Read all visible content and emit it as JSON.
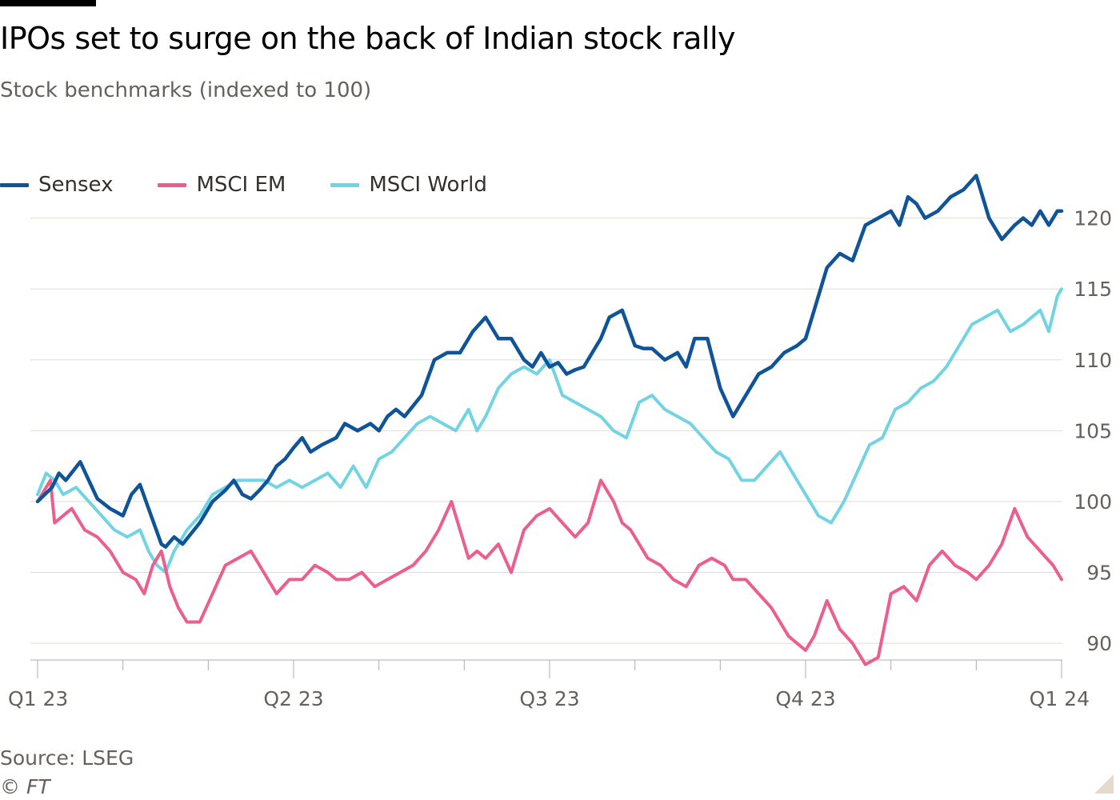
{
  "chart_data": {
    "type": "line",
    "title": "IPOs set to surge on the back of Indian stock rally",
    "subtitle": "Stock benchmarks (indexed to 100)",
    "source": "Source: LSEG",
    "credit": "© FT",
    "x_tick_labels": [
      "Q1 23",
      "Q2 23",
      "Q3 23",
      "Q4 23",
      "Q1 24"
    ],
    "x_range": [
      0,
      12
    ],
    "ylim": [
      88,
      123
    ],
    "y_ticks": [
      90,
      95,
      100,
      105,
      110,
      115,
      120
    ],
    "y_axis_side": "right",
    "grid": true,
    "legend_position": "top-left",
    "series": [
      {
        "name": "Sensex",
        "color": "#0f5499",
        "x": [
          0,
          0.17,
          0.25,
          0.33,
          0.5,
          0.6,
          0.7,
          0.85,
          1.0,
          1.1,
          1.2,
          1.33,
          1.45,
          1.5,
          1.6,
          1.7,
          1.9,
          2.05,
          2.2,
          2.3,
          2.4,
          2.5,
          2.6,
          2.7,
          2.8,
          2.9,
          3.0,
          3.1,
          3.2,
          3.33,
          3.5,
          3.6,
          3.75,
          3.9,
          4.0,
          4.1,
          4.2,
          4.3,
          4.5,
          4.65,
          4.8,
          4.95,
          5.1,
          5.25,
          5.4,
          5.55,
          5.7,
          5.8,
          5.9,
          6.0,
          6.1,
          6.2,
          6.3,
          6.4,
          6.5,
          6.6,
          6.7,
          6.85,
          7.0,
          7.1,
          7.2,
          7.35,
          7.5,
          7.6,
          7.7,
          7.85,
          8.0,
          8.15,
          8.3,
          8.45,
          8.6,
          8.75,
          8.9,
          9.0,
          9.1,
          9.25,
          9.4,
          9.55,
          9.7,
          9.85,
          10.0,
          10.1,
          10.2,
          10.3,
          10.4,
          10.55,
          10.7,
          10.85,
          11.0,
          11.15,
          11.3,
          11.45,
          11.55,
          11.65,
          11.75,
          11.85,
          11.95,
          12.0
        ],
        "values": [
          100.0,
          101.0,
          102.0,
          101.5,
          102.8,
          101.5,
          100.2,
          99.5,
          99.0,
          100.5,
          101.2,
          99.0,
          97.0,
          96.8,
          97.5,
          97.0,
          98.5,
          100.0,
          100.8,
          101.5,
          100.5,
          100.2,
          100.8,
          101.5,
          102.5,
          103.0,
          103.8,
          104.5,
          103.5,
          104.0,
          104.5,
          105.5,
          105.0,
          105.5,
          105.0,
          106.0,
          106.5,
          106.0,
          107.5,
          110.0,
          110.5,
          110.5,
          112.0,
          113.0,
          111.5,
          111.5,
          110.0,
          109.5,
          110.5,
          109.5,
          109.8,
          109.0,
          109.3,
          109.5,
          110.5,
          111.5,
          113.0,
          113.5,
          111.0,
          110.8,
          110.8,
          110.0,
          110.5,
          109.5,
          111.5,
          111.5,
          108.0,
          106.0,
          107.5,
          109.0,
          109.5,
          110.5,
          111.0,
          111.5,
          113.5,
          116.5,
          117.5,
          117.0,
          119.5,
          120.0,
          120.5,
          119.5,
          121.5,
          121.0,
          120.0,
          120.5,
          121.5,
          122.0,
          123.0,
          120.0,
          118.5,
          119.5,
          120.0,
          119.5,
          120.5,
          119.5,
          120.5,
          120.5
        ]
      },
      {
        "name": "MSCI EM",
        "color": "#eb5e8d",
        "x": [
          0,
          0.08,
          0.15,
          0.2,
          0.3,
          0.4,
          0.55,
          0.7,
          0.85,
          1.0,
          1.15,
          1.25,
          1.35,
          1.45,
          1.55,
          1.65,
          1.75,
          1.9,
          2.05,
          2.2,
          2.35,
          2.5,
          2.65,
          2.8,
          2.95,
          3.1,
          3.25,
          3.4,
          3.5,
          3.65,
          3.8,
          3.95,
          4.1,
          4.25,
          4.4,
          4.55,
          4.7,
          4.85,
          4.95,
          5.05,
          5.15,
          5.25,
          5.4,
          5.55,
          5.7,
          5.85,
          6.0,
          6.15,
          6.3,
          6.45,
          6.6,
          6.75,
          6.85,
          6.95,
          7.05,
          7.15,
          7.3,
          7.45,
          7.6,
          7.75,
          7.9,
          8.05,
          8.15,
          8.3,
          8.45,
          8.6,
          8.7,
          8.8,
          8.9,
          9.0,
          9.1,
          9.25,
          9.4,
          9.55,
          9.7,
          9.85,
          10.0,
          10.15,
          10.3,
          10.45,
          10.6,
          10.75,
          10.9,
          11.0,
          11.15,
          11.3,
          11.45,
          11.6,
          11.75,
          11.9,
          12.0
        ],
        "values": [
          100.0,
          100.8,
          101.5,
          98.5,
          99.0,
          99.5,
          98.0,
          97.5,
          96.5,
          95.0,
          94.5,
          93.5,
          95.5,
          96.5,
          94.0,
          92.5,
          91.5,
          91.5,
          93.5,
          95.5,
          96.0,
          96.5,
          95.0,
          93.5,
          94.5,
          94.5,
          95.5,
          95.0,
          94.5,
          94.5,
          95.0,
          94.0,
          94.5,
          95.0,
          95.5,
          96.5,
          98.0,
          100.0,
          98.0,
          96.0,
          96.5,
          96.0,
          97.0,
          95.0,
          98.0,
          99.0,
          99.5,
          98.5,
          97.5,
          98.5,
          101.5,
          100.0,
          98.5,
          98.0,
          97.0,
          96.0,
          95.5,
          94.5,
          94.0,
          95.5,
          96.0,
          95.5,
          94.5,
          94.5,
          93.5,
          92.5,
          91.5,
          90.5,
          90.0,
          89.5,
          90.5,
          93.0,
          91.0,
          90.0,
          88.5,
          89.0,
          93.5,
          94.0,
          93.0,
          95.5,
          96.5,
          95.5,
          95.0,
          94.5,
          95.5,
          97.0,
          99.5,
          97.5,
          96.5,
          95.5,
          94.5
        ]
      },
      {
        "name": "MSCI World",
        "color": "#72d4e3",
        "x": [
          0,
          0.1,
          0.2,
          0.3,
          0.45,
          0.6,
          0.75,
          0.9,
          1.05,
          1.2,
          1.3,
          1.4,
          1.5,
          1.6,
          1.75,
          1.9,
          2.05,
          2.2,
          2.35,
          2.5,
          2.65,
          2.8,
          2.95,
          3.1,
          3.25,
          3.4,
          3.55,
          3.7,
          3.85,
          4.0,
          4.15,
          4.3,
          4.45,
          4.6,
          4.75,
          4.9,
          5.05,
          5.15,
          5.25,
          5.4,
          5.55,
          5.7,
          5.85,
          6.0,
          6.15,
          6.3,
          6.45,
          6.6,
          6.75,
          6.9,
          7.05,
          7.2,
          7.35,
          7.5,
          7.65,
          7.8,
          7.95,
          8.1,
          8.25,
          8.4,
          8.55,
          8.7,
          8.85,
          9.0,
          9.15,
          9.3,
          9.45,
          9.6,
          9.75,
          9.9,
          10.05,
          10.2,
          10.35,
          10.5,
          10.65,
          10.8,
          10.95,
          11.1,
          11.25,
          11.4,
          11.55,
          11.65,
          11.75,
          11.85,
          11.95,
          12.0
        ],
        "values": [
          100.5,
          102.0,
          101.5,
          100.5,
          101.0,
          100.0,
          99.0,
          98.0,
          97.5,
          98.0,
          96.5,
          95.5,
          95.0,
          96.5,
          98.0,
          99.0,
          100.5,
          101.0,
          101.5,
          101.5,
          101.5,
          101.0,
          101.5,
          101.0,
          101.5,
          102.0,
          101.0,
          102.5,
          101.0,
          103.0,
          103.5,
          104.5,
          105.5,
          106.0,
          105.5,
          105.0,
          106.5,
          105.0,
          106.0,
          108.0,
          109.0,
          109.5,
          109.0,
          110.0,
          107.5,
          107.0,
          106.5,
          106.0,
          105.0,
          104.5,
          107.0,
          107.5,
          106.5,
          106.0,
          105.5,
          104.5,
          103.5,
          103.0,
          101.5,
          101.5,
          102.5,
          103.5,
          102.0,
          100.5,
          99.0,
          98.5,
          100.0,
          102.0,
          104.0,
          104.5,
          106.5,
          107.0,
          108.0,
          108.5,
          109.5,
          111.0,
          112.5,
          113.0,
          113.5,
          112.0,
          112.5,
          113.0,
          113.5,
          112.0,
          114.5,
          115.0
        ]
      }
    ]
  }
}
